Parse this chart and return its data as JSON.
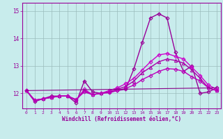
{
  "xlabel": "Windchill (Refroidissement éolien,°C)",
  "background_color": "#c8ecec",
  "grid_color": "#9bbcbc",
  "xlim": [
    -0.5,
    23.5
  ],
  "ylim": [
    11.45,
    15.3
  ],
  "yticks": [
    12,
    13,
    14,
    15
  ],
  "xticks": [
    0,
    1,
    2,
    3,
    4,
    5,
    6,
    7,
    8,
    9,
    10,
    11,
    12,
    13,
    14,
    15,
    16,
    17,
    18,
    19,
    20,
    21,
    22,
    23
  ],
  "series": [
    {
      "x": [
        0,
        1,
        2,
        3,
        4,
        5,
        6,
        7,
        8,
        9,
        10,
        11,
        12,
        13,
        14,
        15,
        16,
        17,
        18,
        19,
        20,
        21,
        22,
        23
      ],
      "y": [
        12.1,
        11.7,
        11.8,
        11.9,
        11.9,
        11.9,
        11.65,
        12.45,
        12.05,
        12.0,
        12.05,
        12.1,
        12.15,
        12.9,
        13.85,
        14.75,
        14.9,
        14.75,
        13.5,
        12.8,
        13.0,
        12.0,
        12.05,
        12.2
      ],
      "marker": "D",
      "markersize": 2.5,
      "linewidth": 1.0,
      "color": "#990099"
    },
    {
      "x": [
        0,
        1,
        2,
        3,
        4,
        5,
        6,
        7,
        8,
        9,
        10,
        11,
        12,
        13,
        14,
        15,
        16,
        17,
        18,
        19,
        20,
        21,
        22,
        23
      ],
      "y": [
        12.1,
        11.75,
        11.8,
        11.85,
        11.9,
        11.9,
        11.75,
        12.15,
        11.95,
        12.0,
        12.1,
        12.2,
        12.35,
        12.55,
        12.85,
        13.15,
        13.4,
        13.45,
        13.35,
        13.25,
        12.95,
        12.65,
        12.3,
        12.15
      ],
      "marker": "D",
      "markersize": 2.5,
      "linewidth": 1.0,
      "color": "#cc00cc"
    },
    {
      "x": [
        0,
        1,
        2,
        3,
        4,
        5,
        6,
        7,
        8,
        9,
        10,
        11,
        12,
        13,
        14,
        15,
        16,
        17,
        18,
        19,
        20,
        21,
        22,
        23
      ],
      "y": [
        12.1,
        11.75,
        11.8,
        11.85,
        11.9,
        11.9,
        11.75,
        12.1,
        11.95,
        12.0,
        12.05,
        12.15,
        12.25,
        12.45,
        12.75,
        12.95,
        13.15,
        13.25,
        13.2,
        13.1,
        12.85,
        12.55,
        12.2,
        12.1
      ],
      "marker": "^",
      "markersize": 3.0,
      "linewidth": 1.0,
      "color": "#aa00aa"
    },
    {
      "x": [
        0,
        1,
        2,
        3,
        4,
        5,
        6,
        7,
        8,
        9,
        10,
        11,
        12,
        13,
        14,
        15,
        16,
        17,
        18,
        19,
        20,
        21,
        22,
        23
      ],
      "y": [
        12.1,
        11.75,
        11.8,
        11.85,
        11.9,
        11.9,
        11.78,
        12.05,
        11.95,
        12.0,
        12.02,
        12.1,
        12.18,
        12.3,
        12.5,
        12.65,
        12.8,
        12.9,
        12.88,
        12.8,
        12.6,
        12.45,
        12.2,
        12.1
      ],
      "marker": "D",
      "markersize": 2.5,
      "linewidth": 1.0,
      "color": "#bb00bb"
    },
    {
      "x": [
        0,
        23
      ],
      "y": [
        12.1,
        12.2
      ],
      "marker": null,
      "markersize": 0,
      "linewidth": 0.8,
      "color": "#880088"
    }
  ]
}
